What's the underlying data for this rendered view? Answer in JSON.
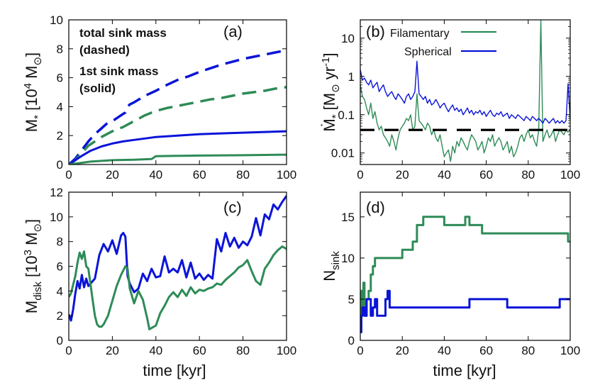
{
  "colors": {
    "filamentary": "#2e8b57",
    "spherical": "#0a14d8",
    "threshold": "#000000",
    "axis": "#000000"
  },
  "chart_data": [
    {
      "id": "a",
      "type": "line",
      "panel_label": "(a)",
      "xlabel": "",
      "ylabel": "M* [10^4 M_sun]",
      "ylabel_parts": [
        "M",
        "*",
        " [10",
        "4",
        " M",
        "⊙",
        "]"
      ],
      "xlim": [
        0,
        100
      ],
      "ylim": [
        0,
        10
      ],
      "xticks": [
        "0",
        "20",
        "40",
        "60",
        "80",
        "100"
      ],
      "yticks": [
        "0",
        "2",
        "4",
        "6",
        "8",
        "10"
      ],
      "annotations": [
        "total sink mass",
        "(dashed)",
        "1st sink mass",
        "(solid)"
      ],
      "series": [
        {
          "name": "Spherical total",
          "color": "spherical",
          "style": "dashed",
          "x": [
            0,
            3,
            6,
            9,
            12,
            15,
            18,
            21,
            24,
            26,
            27,
            28,
            30,
            35,
            40,
            45,
            50,
            55,
            60,
            65,
            70,
            75,
            80,
            85,
            90,
            95,
            100
          ],
          "y": [
            0,
            0.4,
            1.0,
            1.6,
            2.1,
            2.5,
            2.9,
            3.1,
            3.4,
            3.6,
            4.0,
            4.15,
            4.3,
            4.75,
            5.1,
            5.5,
            5.85,
            6.1,
            6.4,
            6.65,
            6.9,
            7.1,
            7.3,
            7.45,
            7.6,
            7.75,
            7.9
          ]
        },
        {
          "name": "Filamentary total",
          "color": "filamentary",
          "style": "dashed",
          "x": [
            0,
            3,
            6,
            9,
            12,
            15,
            20,
            25,
            30,
            35,
            40,
            45,
            50,
            55,
            60,
            65,
            70,
            75,
            80,
            85,
            90,
            95,
            100
          ],
          "y": [
            0,
            0.3,
            0.8,
            1.3,
            1.6,
            1.9,
            2.3,
            2.6,
            3.0,
            3.4,
            3.7,
            3.9,
            4.05,
            4.2,
            4.35,
            4.5,
            4.6,
            4.75,
            4.9,
            5.0,
            5.1,
            5.25,
            5.35
          ]
        },
        {
          "name": "Spherical 1st sink",
          "color": "spherical",
          "style": "solid",
          "x": [
            0,
            3,
            6,
            10,
            15,
            20,
            25,
            30,
            35,
            40,
            50,
            60,
            70,
            80,
            90,
            100
          ],
          "y": [
            0,
            0.3,
            0.6,
            0.95,
            1.25,
            1.45,
            1.6,
            1.7,
            1.8,
            1.9,
            2.0,
            2.1,
            2.15,
            2.2,
            2.25,
            2.3
          ]
        },
        {
          "name": "Filamentary 1st sink",
          "color": "filamentary",
          "style": "solid",
          "x": [
            0,
            5,
            10,
            15,
            20,
            30,
            38,
            40,
            50,
            60,
            70,
            80,
            90,
            100
          ],
          "y": [
            0,
            0.1,
            0.2,
            0.25,
            0.3,
            0.33,
            0.38,
            0.58,
            0.6,
            0.62,
            0.63,
            0.64,
            0.66,
            0.68
          ]
        }
      ]
    },
    {
      "id": "b",
      "type": "line",
      "panel_label": "(b)",
      "xlabel": "",
      "ylabel": "Ṁ* [M_sun yr^-1]",
      "ylabel_parts": [
        "Ṁ",
        "*",
        " [M",
        "⊙",
        " yr",
        "-1",
        "]"
      ],
      "xscale": "linear",
      "yscale": "log",
      "xlim": [
        0,
        100
      ],
      "ylim": [
        0.005,
        30
      ],
      "xticks": [
        "0",
        "20",
        "40",
        "60",
        "80",
        "100"
      ],
      "yticks": [
        "0.01",
        "0.1",
        "1",
        "10"
      ],
      "ytick_values": [
        0.01,
        0.1,
        1,
        10
      ],
      "threshold": {
        "y": 0.04,
        "style": "dashed",
        "color": "threshold"
      },
      "series": [
        {
          "name": "Filamentary",
          "color": "filamentary",
          "style": "solid",
          "x": [
            0,
            1,
            2,
            3,
            4,
            5,
            6,
            7,
            8,
            9,
            10,
            11,
            12,
            13,
            14,
            15,
            16,
            17,
            18,
            19,
            20,
            21,
            22,
            23,
            24,
            25,
            26,
            27,
            28,
            29,
            30,
            31,
            32,
            33,
            34,
            35,
            36,
            37,
            38,
            39,
            40,
            41,
            42,
            43,
            44,
            45,
            46,
            47,
            48,
            49,
            50,
            51,
            52,
            53,
            54,
            55,
            56,
            57,
            58,
            59,
            60,
            61,
            62,
            63,
            64,
            65,
            66,
            67,
            68,
            69,
            70,
            71,
            72,
            73,
            74,
            75,
            76,
            77,
            78,
            79,
            80,
            81,
            82,
            83,
            84,
            85,
            86,
            87,
            88,
            89,
            90,
            91,
            92,
            93,
            94,
            95,
            96,
            97,
            98,
            99,
            100
          ],
          "y": [
            0.6,
            0.3,
            0.25,
            0.15,
            0.1,
            0.2,
            0.08,
            0.12,
            0.06,
            0.04,
            0.05,
            0.03,
            0.025,
            0.02,
            0.015,
            0.03,
            0.02,
            0.012,
            0.025,
            0.04,
            0.05,
            0.06,
            0.08,
            0.07,
            0.1,
            0.04,
            0.05,
            0.35,
            0.07,
            0.06,
            0.05,
            0.04,
            0.06,
            0.05,
            0.03,
            0.04,
            0.025,
            0.02,
            0.03,
            0.015,
            0.008,
            0.01,
            0.012,
            0.006,
            0.015,
            0.01,
            0.02,
            0.015,
            0.025,
            0.02,
            0.015,
            0.012,
            0.02,
            0.03,
            0.025,
            0.02,
            0.012,
            0.015,
            0.02,
            0.01,
            0.015,
            0.025,
            0.02,
            0.03,
            0.015,
            0.02,
            0.025,
            0.02,
            0.012,
            0.015,
            0.02,
            0.01,
            0.015,
            0.008,
            0.01,
            0.015,
            0.025,
            0.03,
            0.02,
            0.03,
            0.04,
            0.025,
            0.03,
            0.02,
            0.015,
            0.04,
            30,
            0.02,
            0.03,
            0.04,
            0.025,
            0.03,
            0.04,
            0.02,
            0.03,
            0.04,
            0.035,
            0.03,
            0.04,
            0.035,
            0.04
          ]
        },
        {
          "name": "Spherical",
          "color": "spherical",
          "style": "solid",
          "x": [
            0,
            1,
            2,
            3,
            4,
            5,
            6,
            7,
            8,
            9,
            10,
            11,
            12,
            13,
            14,
            15,
            16,
            17,
            18,
            19,
            20,
            21,
            22,
            23,
            24,
            25,
            26,
            27,
            28,
            29,
            30,
            31,
            32,
            33,
            34,
            35,
            36,
            37,
            38,
            39,
            40,
            41,
            42,
            43,
            44,
            45,
            46,
            47,
            48,
            49,
            50,
            51,
            52,
            53,
            54,
            55,
            56,
            57,
            58,
            59,
            60,
            61,
            62,
            63,
            64,
            65,
            66,
            67,
            68,
            69,
            70,
            71,
            72,
            73,
            74,
            75,
            76,
            77,
            78,
            79,
            80,
            81,
            82,
            83,
            84,
            85,
            86,
            87,
            88,
            89,
            90,
            91,
            92,
            93,
            94,
            95,
            96,
            97,
            98,
            99,
            100
          ],
          "y": [
            1.5,
            0.8,
            0.9,
            0.7,
            0.6,
            0.8,
            0.5,
            0.6,
            0.7,
            0.4,
            0.5,
            0.6,
            0.4,
            0.3,
            0.35,
            0.4,
            0.3,
            0.25,
            0.35,
            0.3,
            0.25,
            0.2,
            0.3,
            0.35,
            0.25,
            0.3,
            0.4,
            2.5,
            0.35,
            0.3,
            0.25,
            0.3,
            0.2,
            0.25,
            0.18,
            0.2,
            0.25,
            0.2,
            0.15,
            0.18,
            0.2,
            0.15,
            0.12,
            0.15,
            0.18,
            0.13,
            0.15,
            0.12,
            0.14,
            0.1,
            0.12,
            0.15,
            0.11,
            0.13,
            0.1,
            0.12,
            0.11,
            0.13,
            0.1,
            0.12,
            0.09,
            0.11,
            0.13,
            0.1,
            0.09,
            0.11,
            0.1,
            0.12,
            0.09,
            0.1,
            0.11,
            0.08,
            0.1,
            0.09,
            0.08,
            0.1,
            0.09,
            0.08,
            0.07,
            0.09,
            0.08,
            0.07,
            0.09,
            0.08,
            0.07,
            0.08,
            0.07,
            0.06,
            0.08,
            0.07,
            0.06,
            0.07,
            0.08,
            0.06,
            0.07,
            0.06,
            0.07,
            0.06,
            0.07,
            0.65,
            0.07
          ]
        }
      ],
      "legend": [
        "Filamentary",
        "Spherical"
      ],
      "legend_position": "top-right"
    },
    {
      "id": "c",
      "type": "line",
      "panel_label": "(c)",
      "xlabel": "time [kyr]",
      "ylabel": "M_disk [10^3 M_sun]",
      "ylabel_parts": [
        "M",
        "disk",
        " [10",
        "3",
        " M",
        "⊙",
        "]"
      ],
      "xlim": [
        0,
        100
      ],
      "ylim": [
        0,
        12
      ],
      "xticks": [
        "0",
        "20",
        "40",
        "60",
        "80",
        "100"
      ],
      "yticks": [
        "0",
        "2",
        "4",
        "6",
        "8",
        "10",
        "12"
      ],
      "series": [
        {
          "name": "Spherical",
          "color": "spherical",
          "style": "solid",
          "x": [
            0,
            1,
            2,
            3,
            4,
            5,
            6,
            7,
            8,
            9,
            10,
            12,
            14,
            16,
            18,
            20,
            22,
            24,
            25,
            26,
            27,
            28,
            30,
            32,
            34,
            36,
            38,
            40,
            42,
            44,
            46,
            48,
            50,
            52,
            54,
            56,
            58,
            60,
            62,
            64,
            66,
            68,
            70,
            72,
            74,
            76,
            78,
            80,
            82,
            84,
            86,
            88,
            90,
            92,
            94,
            96,
            98,
            100
          ],
          "y": [
            2.1,
            1.6,
            2.5,
            3.8,
            4.8,
            4.2,
            5.3,
            4.3,
            5.0,
            4.4,
            4.6,
            5.0,
            6.9,
            7.8,
            7.2,
            8.1,
            7.0,
            8.5,
            8.7,
            8.4,
            5.2,
            4.6,
            3.9,
            4.2,
            5.4,
            4.8,
            5.8,
            5.1,
            5.2,
            6.8,
            5.5,
            5.8,
            5.5,
            6.5,
            5.1,
            6.3,
            5.0,
            5.4,
            4.9,
            5.3,
            5.0,
            8.2,
            7.2,
            8.7,
            7.6,
            8.3,
            7.5,
            8.0,
            7.7,
            8.4,
            9.9,
            8.5,
            10.2,
            9.8,
            11.0,
            10.6,
            11.2,
            11.7
          ]
        },
        {
          "name": "Filamentary",
          "color": "filamentary",
          "style": "solid",
          "x": [
            0,
            1,
            2,
            3,
            4,
            5,
            6,
            7,
            8,
            9,
            10,
            11,
            12,
            13,
            14,
            15,
            16,
            18,
            20,
            22,
            24,
            26,
            27,
            28,
            30,
            32,
            34,
            36,
            37,
            38,
            40,
            42,
            44,
            46,
            48,
            50,
            52,
            54,
            56,
            58,
            60,
            62,
            64,
            66,
            68,
            70,
            72,
            74,
            76,
            78,
            80,
            82,
            84,
            86,
            88,
            90,
            92,
            94,
            96,
            98,
            100
          ],
          "y": [
            3.5,
            3.8,
            4.5,
            5.2,
            6.3,
            7.1,
            6.6,
            7.2,
            6.0,
            5.8,
            4.5,
            3.2,
            2.0,
            1.3,
            1.1,
            1.1,
            1.3,
            2.0,
            3.2,
            4.4,
            5.3,
            6.0,
            5.8,
            4.2,
            3.0,
            4.0,
            3.3,
            1.8,
            0.9,
            1.0,
            1.2,
            2.2,
            2.8,
            3.5,
            3.9,
            3.5,
            4.1,
            3.6,
            4.3,
            3.8,
            4.1,
            4.0,
            4.2,
            4.3,
            4.6,
            4.5,
            4.9,
            5.2,
            5.5,
            5.9,
            6.1,
            6.5,
            5.6,
            4.8,
            4.5,
            5.8,
            6.3,
            6.9,
            7.3,
            7.6,
            7.4
          ]
        }
      ]
    },
    {
      "id": "d",
      "type": "line",
      "panel_label": "(d)",
      "xlabel": "time [kyr]",
      "ylabel": "N_sink",
      "ylabel_parts": [
        "N",
        "sink"
      ],
      "xlim": [
        0,
        100
      ],
      "ylim": [
        0,
        18
      ],
      "xticks": [
        "0",
        "20",
        "40",
        "60",
        "80",
        "100"
      ],
      "yticks": [
        "0",
        "5",
        "10",
        "15"
      ],
      "series": [
        {
          "name": "Filamentary",
          "color": "filamentary",
          "style": "step",
          "x": [
            0,
            0.5,
            1,
            1.5,
            2,
            2.5,
            3,
            4,
            5,
            6,
            7,
            10,
            15,
            20,
            22,
            25,
            27,
            30,
            35,
            40,
            45,
            50,
            52,
            55,
            58,
            60,
            70,
            80,
            90,
            99,
            100
          ],
          "y": [
            1,
            6,
            4,
            7,
            5,
            3,
            5,
            6,
            8,
            9,
            10,
            10,
            10,
            11,
            11,
            12,
            14,
            15,
            15,
            14,
            14,
            15,
            14,
            14,
            13,
            13,
            13,
            13,
            13,
            12,
            12
          ]
        },
        {
          "name": "Spherical",
          "color": "spherical",
          "style": "step",
          "x": [
            0,
            0.5,
            1,
            2,
            3,
            5,
            6,
            7,
            8,
            10,
            12,
            13,
            14,
            15,
            20,
            30,
            40,
            50,
            52,
            60,
            70,
            80,
            90,
            95,
            100
          ],
          "y": [
            1,
            3,
            4,
            3,
            5,
            3,
            4,
            5,
            3,
            3,
            5,
            6,
            4,
            4,
            4,
            4,
            4,
            4,
            5,
            5,
            4,
            4,
            4,
            5,
            5
          ]
        }
      ]
    }
  ]
}
